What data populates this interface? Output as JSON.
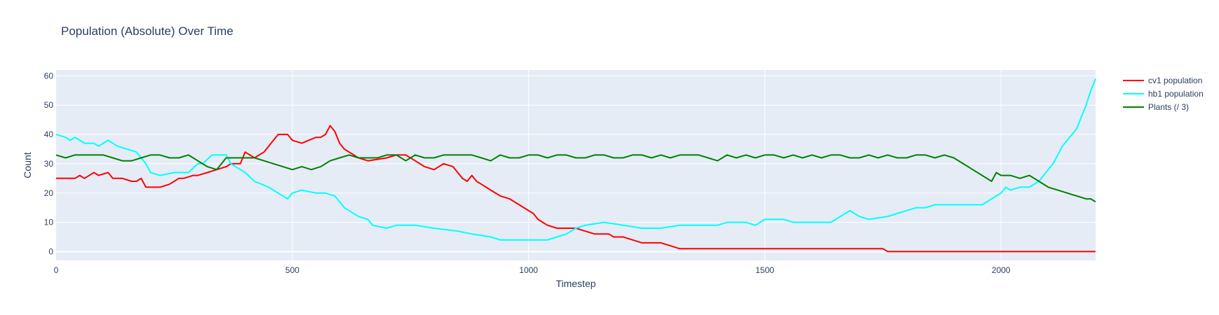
{
  "chart_data": {
    "type": "line",
    "title": "Population (Absolute) Over Time",
    "xlabel": "Timestep",
    "ylabel": "Count",
    "xlim": [
      0,
      2200
    ],
    "ylim": [
      -3,
      62
    ],
    "xticks": [
      0,
      500,
      1000,
      1500,
      2000
    ],
    "yticks": [
      0,
      10,
      20,
      30,
      40,
      50,
      60
    ],
    "grid": true,
    "legend_position": "top-right",
    "background": "#e5ecf6",
    "series": [
      {
        "name": "cv1 population",
        "color": "#ff0000",
        "x": [
          0,
          40,
          50,
          60,
          80,
          90,
          110,
          120,
          140,
          160,
          170,
          180,
          190,
          220,
          240,
          260,
          270,
          290,
          300,
          320,
          340,
          360,
          370,
          390,
          400,
          420,
          440,
          460,
          470,
          490,
          500,
          520,
          550,
          560,
          570,
          580,
          590,
          600,
          610,
          620,
          640,
          660,
          700,
          720,
          740,
          760,
          780,
          800,
          820,
          840,
          860,
          870,
          880,
          890,
          900,
          910,
          920,
          940,
          960,
          980,
          1000,
          1010,
          1020,
          1030,
          1040,
          1060,
          1080,
          1100,
          1120,
          1140,
          1170,
          1180,
          1200,
          1220,
          1240,
          1250,
          1280,
          1300,
          1320,
          1400,
          1500,
          1600,
          1700,
          1720,
          1740,
          1750,
          1760,
          1800,
          1900,
          2000,
          2100,
          2200
        ],
        "values": [
          25,
          25,
          26,
          25,
          27,
          26,
          27,
          25,
          25,
          24,
          24,
          25,
          22,
          22,
          23,
          25,
          25,
          26,
          26,
          27,
          28,
          29,
          30,
          30,
          34,
          32,
          34,
          38,
          40,
          40,
          38,
          37,
          39,
          39,
          40,
          43,
          41,
          37,
          35,
          34,
          32,
          31,
          32,
          33,
          33,
          31,
          29,
          28,
          30,
          29,
          25,
          24,
          26,
          24,
          23,
          22,
          21,
          19,
          18,
          16,
          14,
          13,
          11,
          10,
          9,
          8,
          8,
          8,
          7,
          6,
          6,
          5,
          5,
          4,
          3,
          3,
          3,
          2,
          1,
          1,
          1,
          1,
          1,
          1,
          1,
          1,
          0,
          0,
          0,
          0,
          0,
          0
        ]
      },
      {
        "name": "hb1 population",
        "color": "#00ffff",
        "x": [
          0,
          20,
          30,
          40,
          50,
          60,
          80,
          90,
          110,
          130,
          150,
          170,
          190,
          200,
          220,
          250,
          280,
          300,
          310,
          330,
          350,
          360,
          370,
          380,
          390,
          400,
          420,
          450,
          470,
          490,
          500,
          520,
          550,
          560,
          570,
          590,
          610,
          640,
          660,
          670,
          700,
          720,
          760,
          800,
          850,
          880,
          920,
          940,
          1000,
          1020,
          1040,
          1060,
          1080,
          1100,
          1120,
          1160,
          1200,
          1240,
          1280,
          1320,
          1360,
          1400,
          1420,
          1460,
          1480,
          1500,
          1540,
          1560,
          1600,
          1640,
          1660,
          1680,
          1700,
          1720,
          1760,
          1780,
          1800,
          1820,
          1840,
          1860,
          1900,
          1940,
          1960,
          1990,
          2000,
          2010,
          2020,
          2040,
          2060,
          2080,
          2090,
          2100,
          2110,
          2130,
          2150,
          2160,
          2170,
          2180,
          2190,
          2200
        ],
        "values": [
          40,
          39,
          38,
          39,
          38,
          37,
          37,
          36,
          38,
          36,
          35,
          34,
          30,
          27,
          26,
          27,
          27,
          30,
          30,
          33,
          33,
          33,
          30,
          29,
          28,
          27,
          24,
          22,
          20,
          18,
          20,
          21,
          20,
          20,
          20,
          19,
          15,
          12,
          11,
          9,
          8,
          9,
          9,
          8,
          7,
          6,
          5,
          4,
          4,
          4,
          4,
          5,
          6,
          8,
          9,
          10,
          9,
          8,
          8,
          9,
          9,
          9,
          10,
          10,
          9,
          11,
          11,
          10,
          10,
          10,
          12,
          14,
          12,
          11,
          12,
          13,
          14,
          15,
          15,
          16,
          16,
          16,
          16,
          19,
          20,
          22,
          21,
          22,
          22,
          24,
          26,
          28,
          30,
          36,
          40,
          42,
          46,
          50,
          55,
          59
        ]
      },
      {
        "name": "Plants (/ 3)",
        "color": "#008000",
        "x": [
          0,
          20,
          40,
          60,
          80,
          100,
          120,
          140,
          160,
          180,
          200,
          220,
          240,
          260,
          280,
          300,
          320,
          340,
          360,
          380,
          400,
          420,
          440,
          460,
          480,
          500,
          520,
          540,
          560,
          580,
          600,
          620,
          640,
          660,
          680,
          700,
          720,
          740,
          760,
          780,
          800,
          820,
          840,
          860,
          880,
          900,
          920,
          940,
          960,
          980,
          1000,
          1020,
          1040,
          1060,
          1080,
          1100,
          1120,
          1140,
          1160,
          1180,
          1200,
          1220,
          1240,
          1260,
          1280,
          1300,
          1320,
          1340,
          1360,
          1380,
          1400,
          1420,
          1440,
          1460,
          1480,
          1500,
          1520,
          1540,
          1560,
          1580,
          1600,
          1620,
          1640,
          1660,
          1680,
          1700,
          1720,
          1740,
          1760,
          1780,
          1800,
          1820,
          1840,
          1860,
          1880,
          1900,
          1920,
          1940,
          1960,
          1980,
          1990,
          2000,
          2020,
          2040,
          2060,
          2080,
          2100,
          2120,
          2140,
          2160,
          2180,
          2190,
          2200
        ],
        "values": [
          33,
          32,
          33,
          33,
          33,
          33,
          32,
          31,
          31,
          32,
          33,
          33,
          32,
          32,
          33,
          31,
          29,
          28,
          32,
          32,
          32,
          32,
          31,
          30,
          29,
          28,
          29,
          28,
          29,
          31,
          32,
          33,
          32,
          32,
          32,
          33,
          33,
          31,
          33,
          32,
          32,
          33,
          33,
          33,
          33,
          32,
          31,
          33,
          32,
          32,
          33,
          33,
          32,
          33,
          33,
          32,
          32,
          33,
          33,
          32,
          32,
          33,
          33,
          32,
          33,
          32,
          33,
          33,
          33,
          32,
          31,
          33,
          32,
          33,
          32,
          33,
          33,
          32,
          33,
          32,
          33,
          32,
          33,
          33,
          32,
          32,
          33,
          32,
          33,
          32,
          32,
          33,
          33,
          32,
          33,
          32,
          30,
          28,
          26,
          24,
          27,
          26,
          26,
          25,
          26,
          24,
          22,
          21,
          20,
          19,
          18,
          18,
          17
        ]
      }
    ]
  }
}
